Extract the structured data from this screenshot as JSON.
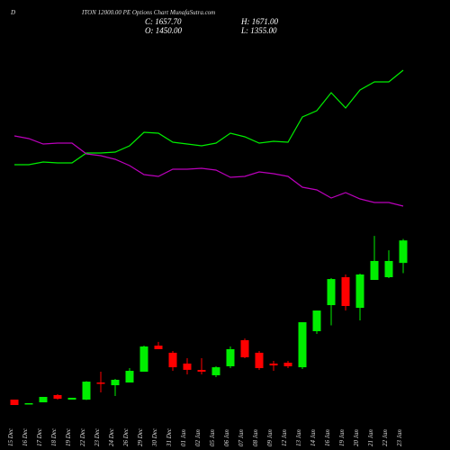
{
  "chart_data": {
    "type": "candlestick",
    "symbol": "D",
    "title": "ITON 12000.00 PE Options Chart MunafaSutra.com",
    "ohlc_labels": {
      "close": "C: 1657.70",
      "high": "H: 1671.00",
      "open": "O: 1450.00",
      "low": "L: 1355.00"
    },
    "categories": [
      "15 Dec",
      "16 Dec",
      "17 Dec",
      "18 Dec",
      "19 Dec",
      "22 Dec",
      "23 Dec",
      "24 Dec",
      "26 Dec",
      "29 Dec",
      "30 Dec",
      "31 Dec",
      "01 Jan",
      "02 Jan",
      "05 Jan",
      "06 Jan",
      "07 Jan",
      "08 Jan",
      "09 Jan",
      "12 Jan",
      "13 Jan",
      "14 Jan",
      "16 Jan",
      "19 Jan",
      "20 Jan",
      "21 Jan",
      "22 Jan",
      "23 Jan"
    ],
    "open": [
      187,
      146,
      162,
      229,
      187,
      187,
      345,
      320,
      345,
      445,
      686,
      620,
      520,
      461,
      412,
      495,
      736,
      620,
      520,
      528,
      486,
      819,
      1060,
      1318,
      1035,
      1293,
      1318,
      1450
    ],
    "high": [
      187,
      154,
      212,
      237,
      204,
      358,
      445,
      378,
      478,
      686,
      720,
      636,
      570,
      570,
      495,
      678,
      752,
      636,
      545,
      545,
      902,
      1010,
      1310,
      1343,
      1351,
      1700,
      1567,
      1671
    ],
    "low": [
      137,
      146,
      162,
      187,
      187,
      183,
      254,
      220,
      345,
      445,
      653,
      453,
      420,
      420,
      395,
      478,
      570,
      462,
      453,
      478,
      470,
      794,
      873,
      1010,
      919,
      1293,
      1310,
      1355
    ],
    "close": [
      137,
      154,
      212,
      195,
      204,
      353,
      341,
      370,
      453,
      678,
      653,
      486,
      462,
      445,
      486,
      653,
      578,
      478,
      503,
      495,
      902,
      1010,
      1301,
      1052,
      1343,
      1468,
      1468,
      1657.7
    ],
    "up_color": "#00ee00",
    "down_color": "#ff0000",
    "ylim": [
      0,
      2000
    ],
    "y2lim": [
      0,
      100
    ],
    "series": [
      {
        "color": "#00ee00",
        "axis": "y2",
        "values": [
          33.5,
          33.5,
          35,
          34.5,
          34.5,
          40,
          40,
          40.5,
          44,
          51.5,
          51,
          46,
          45,
          44,
          45.5,
          51,
          49,
          45.5,
          46.5,
          46,
          60,
          63.5,
          73.5,
          65,
          75,
          79.5,
          79.5,
          86
        ]
      },
      {
        "color": "#bb00bb",
        "axis": "y2",
        "values": [
          49.5,
          48,
          45,
          45.5,
          45.5,
          39.5,
          38.5,
          36.5,
          33,
          28,
          27,
          31,
          31,
          31.5,
          30.5,
          26.5,
          27,
          29.5,
          28.5,
          27,
          21,
          19.5,
          15,
          18,
          14.5,
          12.5,
          12.5,
          10.5
        ]
      }
    ]
  }
}
